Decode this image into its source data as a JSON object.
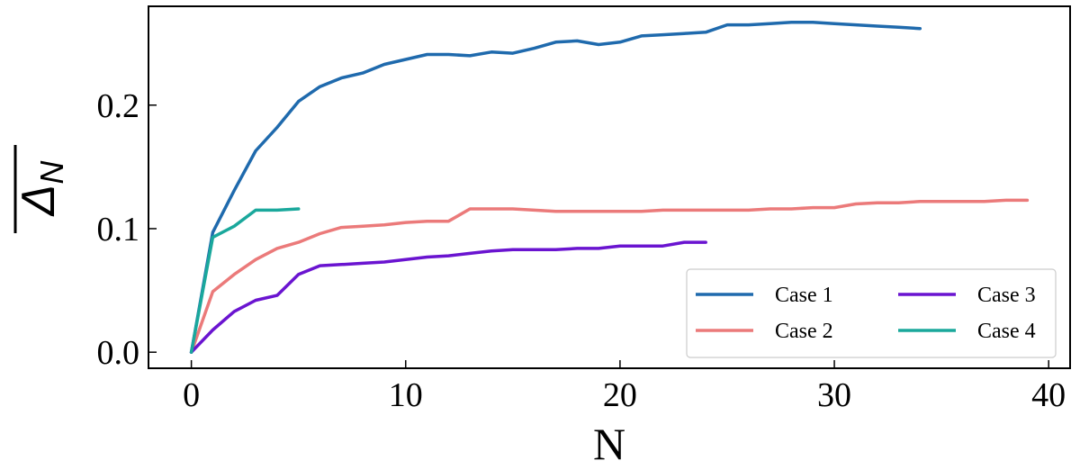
{
  "chart_data": {
    "type": "line",
    "title": "",
    "xlabel": "N",
    "ylabel": {
      "main": "Δ",
      "subscript": "N"
    },
    "xlim": [
      -2,
      41
    ],
    "ylim": [
      -0.013,
      0.28
    ],
    "xticks": [
      0,
      10,
      20,
      30,
      40
    ],
    "xtick_labels": [
      "0",
      "10",
      "20",
      "30",
      "40"
    ],
    "yticks": [
      0.0,
      0.1,
      0.2
    ],
    "ytick_labels": [
      "0.0",
      "0.1",
      "0.2"
    ],
    "grid": false,
    "legend": {
      "position": "bottom-right",
      "columns": 2
    },
    "series": [
      {
        "name": "Case 1",
        "color": "#1f6aad",
        "x": [
          0,
          1,
          2,
          3,
          4,
          5,
          6,
          7,
          8,
          9,
          10,
          11,
          12,
          13,
          14,
          15,
          16,
          17,
          18,
          19,
          20,
          21,
          22,
          23,
          24,
          25,
          26,
          27,
          28,
          29,
          30,
          31,
          32,
          33,
          34
        ],
        "y": [
          0.0,
          0.097,
          0.131,
          0.163,
          0.182,
          0.203,
          0.215,
          0.222,
          0.226,
          0.233,
          0.237,
          0.241,
          0.241,
          0.24,
          0.243,
          0.242,
          0.246,
          0.251,
          0.252,
          0.249,
          0.251,
          0.256,
          0.257,
          0.258,
          0.259,
          0.265,
          0.265,
          0.266,
          0.267,
          0.267,
          0.266,
          0.265,
          0.264,
          0.263,
          0.262
        ]
      },
      {
        "name": "Case 2",
        "color": "#eb7a7a",
        "x": [
          0,
          1,
          2,
          3,
          4,
          5,
          6,
          7,
          8,
          9,
          10,
          11,
          12,
          13,
          14,
          15,
          16,
          17,
          18,
          19,
          20,
          21,
          22,
          23,
          24,
          25,
          26,
          27,
          28,
          29,
          30,
          31,
          32,
          33,
          34,
          35,
          36,
          37,
          38,
          39
        ],
        "y": [
          0.0,
          0.049,
          0.063,
          0.075,
          0.084,
          0.089,
          0.096,
          0.101,
          0.102,
          0.103,
          0.105,
          0.106,
          0.106,
          0.116,
          0.116,
          0.116,
          0.115,
          0.114,
          0.114,
          0.114,
          0.114,
          0.114,
          0.115,
          0.115,
          0.115,
          0.115,
          0.115,
          0.116,
          0.116,
          0.117,
          0.117,
          0.12,
          0.121,
          0.121,
          0.122,
          0.122,
          0.122,
          0.122,
          0.123,
          0.123
        ]
      },
      {
        "name": "Case 3",
        "color": "#6a14d0",
        "x": [
          0,
          1,
          2,
          3,
          4,
          5,
          6,
          7,
          8,
          9,
          10,
          11,
          12,
          13,
          14,
          15,
          16,
          17,
          18,
          19,
          20,
          21,
          22,
          23,
          24
        ],
        "y": [
          0.0,
          0.018,
          0.033,
          0.042,
          0.046,
          0.063,
          0.07,
          0.071,
          0.072,
          0.073,
          0.075,
          0.077,
          0.078,
          0.08,
          0.082,
          0.083,
          0.083,
          0.083,
          0.084,
          0.084,
          0.086,
          0.086,
          0.086,
          0.089,
          0.089
        ]
      },
      {
        "name": "Case 4",
        "color": "#1aa89c",
        "x": [
          0,
          1,
          2,
          3,
          4,
          5
        ],
        "y": [
          0.0,
          0.093,
          0.102,
          0.115,
          0.115,
          0.116
        ]
      }
    ]
  }
}
